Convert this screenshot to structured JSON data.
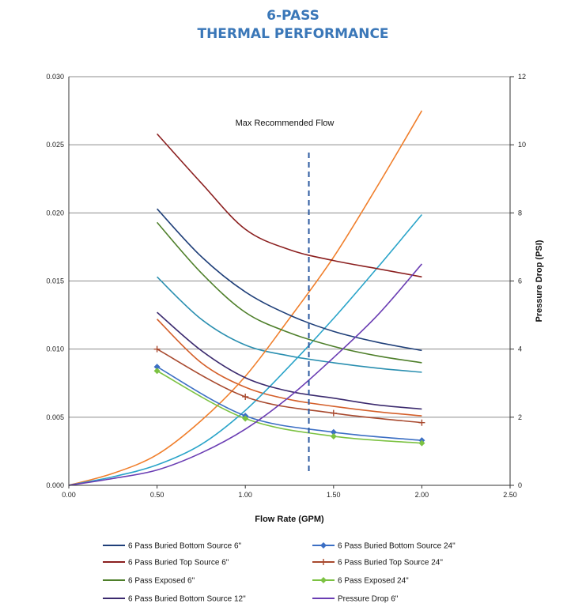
{
  "title_line1": "6-PASS",
  "title_line2": "THERMAL PERFORMANCE",
  "chart_data": {
    "type": "line",
    "xlabel": "Flow Rate (GPM)",
    "ylabel": "",
    "y2label": "Pressure Drop (PSI)",
    "xlim": [
      0,
      2.5
    ],
    "ylim": [
      0,
      0.03
    ],
    "y2lim": [
      0,
      12
    ],
    "x_ticks": [
      "0.00",
      "0.50",
      "1.00",
      "1.50",
      "2.00",
      "2.50"
    ],
    "y_ticks": [
      "0.000",
      "0.005",
      "0.010",
      "0.015",
      "0.020",
      "0.025",
      "0.030"
    ],
    "y2_ticks": [
      "0",
      "2",
      "4",
      "6",
      "8",
      "10",
      "12"
    ],
    "grid": true,
    "legend_position": "bottom",
    "annotation": {
      "text": "Max Recommended Flow",
      "x": 1.36
    },
    "series": [
      {
        "name": "6 Pass Buried Bottom Source 6\"",
        "axis": "left",
        "color": "#1f3f79",
        "marker": "none",
        "x": [
          0.5,
          0.75,
          1.0,
          1.25,
          1.5,
          1.75,
          2.0
        ],
        "y": [
          0.0203,
          0.0168,
          0.0142,
          0.0125,
          0.0113,
          0.0105,
          0.0099
        ]
      },
      {
        "name": "6 Pass Buried Bottom Source 24\"",
        "axis": "left",
        "color": "#3c6fc4",
        "marker": "diamond",
        "x": [
          0.5,
          1.0,
          1.5,
          2.0
        ],
        "y": [
          0.0087,
          0.0051,
          0.0039,
          0.0033
        ]
      },
      {
        "name": "6 Pass Buried Top Source 6\"",
        "axis": "left",
        "color": "#8b1f1f",
        "marker": "none",
        "x": [
          0.5,
          0.75,
          1.0,
          1.25,
          1.5,
          1.75,
          2.0
        ],
        "y": [
          0.0258,
          0.0222,
          0.0188,
          0.0173,
          0.0165,
          0.0159,
          0.0153
        ]
      },
      {
        "name": "6 Pass Buried Top Source 24\"",
        "axis": "left",
        "color": "#a8492e",
        "marker": "plus",
        "x": [
          0.5,
          1.0,
          1.5,
          2.0
        ],
        "y": [
          0.01,
          0.0065,
          0.0053,
          0.0046
        ]
      },
      {
        "name": "6 Pass Exposed 6\"",
        "axis": "left",
        "color": "#4e7f2a",
        "marker": "none",
        "x": [
          0.5,
          0.75,
          1.0,
          1.25,
          1.5,
          1.75,
          2.0
        ],
        "y": [
          0.0193,
          0.0156,
          0.0127,
          0.0112,
          0.0102,
          0.0095,
          0.009
        ]
      },
      {
        "name": "6 Pass Exposed 24\"",
        "axis": "left",
        "color": "#7cc242",
        "marker": "diamond",
        "x": [
          0.5,
          1.0,
          1.5,
          2.0
        ],
        "y": [
          0.0084,
          0.0049,
          0.0036,
          0.0031
        ]
      },
      {
        "name": "6 Pass Buried Bottom Source 12\"",
        "axis": "left",
        "color": "#3b2a6e",
        "marker": "none",
        "x": [
          0.5,
          0.75,
          1.0,
          1.25,
          1.5,
          1.75,
          2.0
        ],
        "y": [
          0.0127,
          0.0099,
          0.0079,
          0.0069,
          0.0064,
          0.0059,
          0.0056
        ]
      },
      {
        "name": "Pressure Drop 6\"",
        "axis": "right",
        "color": "#6a3db3",
        "marker": "none",
        "x": [
          0,
          0.25,
          0.5,
          0.75,
          1.0,
          1.25,
          1.5,
          1.75,
          2.0
        ],
        "y": [
          0,
          0.2,
          0.45,
          0.95,
          1.65,
          2.6,
          3.75,
          5.0,
          6.5
        ]
      }
    ],
    "unlabeled_series": [
      {
        "axis": "left",
        "color": "#2a8fb0",
        "marker": "none",
        "x": [
          0.5,
          0.75,
          1.0,
          1.25,
          1.5,
          1.75,
          2.0
        ],
        "y": [
          0.0153,
          0.0122,
          0.0103,
          0.0095,
          0.009,
          0.0086,
          0.0083
        ]
      },
      {
        "axis": "left",
        "color": "#d45f2a",
        "marker": "none",
        "x": [
          0.5,
          0.75,
          1.0,
          1.25,
          1.5,
          1.75,
          2.0
        ],
        "y": [
          0.0122,
          0.009,
          0.0072,
          0.0063,
          0.0058,
          0.0054,
          0.0051
        ]
      },
      {
        "axis": "right",
        "color": "#f07f2c",
        "marker": "none",
        "x": [
          0,
          0.25,
          0.5,
          0.75,
          1.0,
          1.25,
          1.5,
          1.75,
          2.0
        ],
        "y": [
          0,
          0.35,
          0.9,
          1.9,
          3.2,
          4.9,
          6.7,
          8.8,
          11.0
        ]
      },
      {
        "axis": "right",
        "color": "#2aa4c9",
        "marker": "none",
        "x": [
          0,
          0.25,
          0.5,
          0.75,
          1.0,
          1.25,
          1.5,
          1.75,
          2.0
        ],
        "y": [
          0,
          0.25,
          0.6,
          1.2,
          2.2,
          3.5,
          4.9,
          6.4,
          7.95
        ]
      }
    ]
  }
}
